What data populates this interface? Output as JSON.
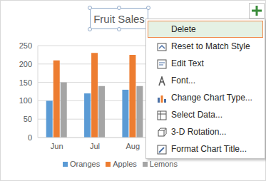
{
  "chart_data": {
    "type": "bar",
    "title": "Fruit Sales",
    "categories": [
      "Jun",
      "Jul",
      "Aug"
    ],
    "series": [
      {
        "name": "Oranges",
        "color": "#5b9bd5",
        "values": [
          100,
          120,
          130
        ]
      },
      {
        "name": "Apples",
        "color": "#ed7d31",
        "values": [
          210,
          230,
          225
        ]
      },
      {
        "name": "Lemons",
        "color": "#a5a5a5",
        "values": [
          150,
          140,
          140
        ]
      }
    ],
    "ylim": [
      0,
      250
    ],
    "yticks": [
      0,
      50,
      100,
      150,
      200,
      250
    ],
    "grid": true,
    "legend": "bottom"
  },
  "context_menu": {
    "items": [
      "Delete",
      "Reset to Match Style",
      "Edit Text",
      "Font...",
      "Change Chart Type...",
      "Select Data...",
      "3-D Rotation...",
      "Format Chart Title..."
    ]
  }
}
